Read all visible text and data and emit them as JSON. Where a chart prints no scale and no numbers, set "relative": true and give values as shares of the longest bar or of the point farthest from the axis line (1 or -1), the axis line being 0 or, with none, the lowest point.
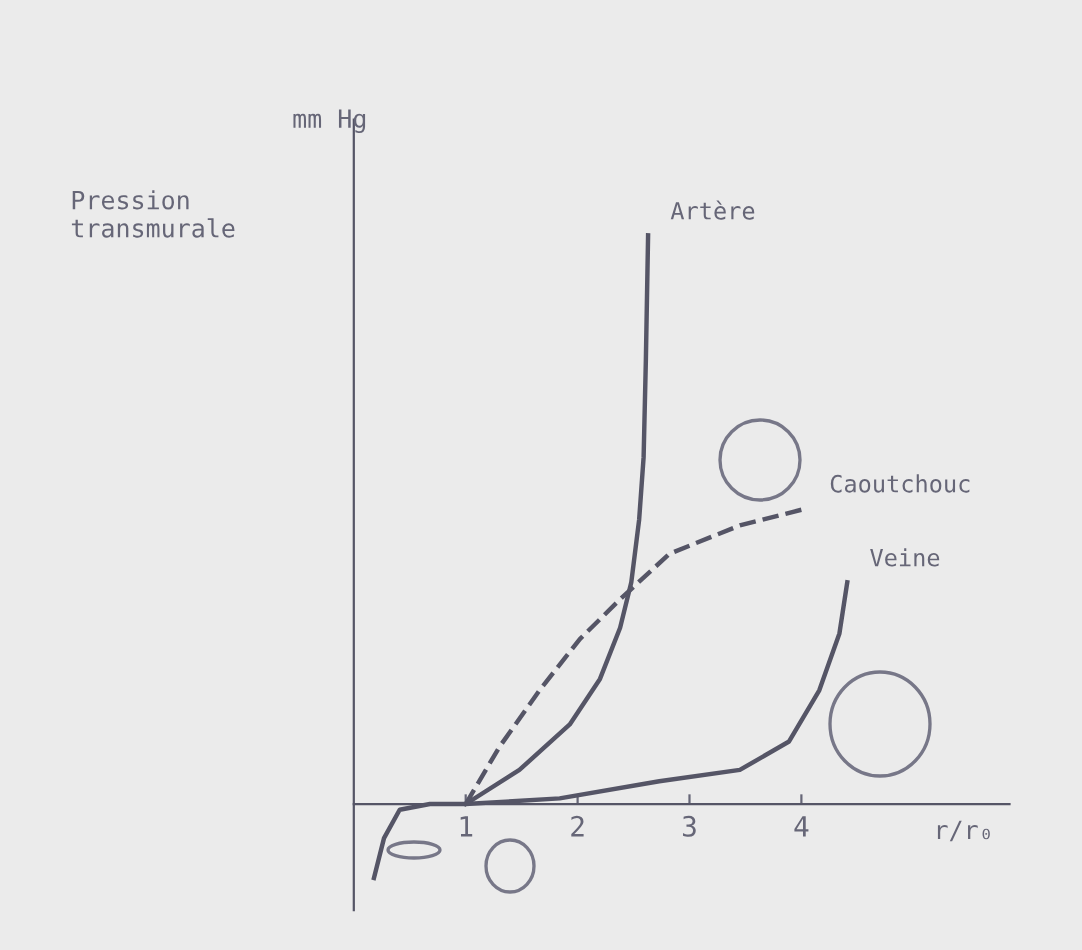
{
  "chart_data": {
    "type": "line",
    "relative": true,
    "ylabel": "Pression\ntransmurale",
    "xlabel": "r/r₀",
    "annotations": [
      "mm Hg"
    ],
    "xlim": [
      0,
      5.86
    ],
    "xticks": [
      1,
      2,
      3,
      4
    ],
    "grid": false,
    "legend": false,
    "marker": "none",
    "series": [
      {
        "name": "Artère",
        "color": "#555566",
        "line_style": "solid",
        "x": [
          1.0,
          1.48,
          1.93,
          2.2,
          2.38,
          2.48,
          2.55,
          2.59,
          2.61,
          2.63
        ],
        "values": [
          0,
          0.06,
          0.14,
          0.22,
          0.31,
          0.39,
          0.5,
          0.61,
          0.78,
          1.0
        ]
      },
      {
        "name": "Caoutchouc",
        "color": "#555566",
        "line_style": "dashed",
        "x": [
          1.0,
          1.3,
          1.66,
          2.02,
          2.38,
          2.82,
          3.45,
          4.05
        ],
        "values": [
          0,
          0.1,
          0.2,
          0.29,
          0.36,
          0.44,
          0.49,
          0.52
        ]
      },
      {
        "name": "Veine",
        "color": "#555566",
        "line_style": "solid",
        "x": [
          0.18,
          0.27,
          0.41,
          0.68,
          1.0,
          1.84,
          2.73,
          3.45,
          3.89,
          4.16,
          4.34,
          4.41
        ],
        "values": [
          -0.13,
          -0.06,
          -0.01,
          0,
          0,
          0.01,
          0.04,
          0.06,
          0.11,
          0.2,
          0.3,
          0.39
        ]
      }
    ]
  }
}
